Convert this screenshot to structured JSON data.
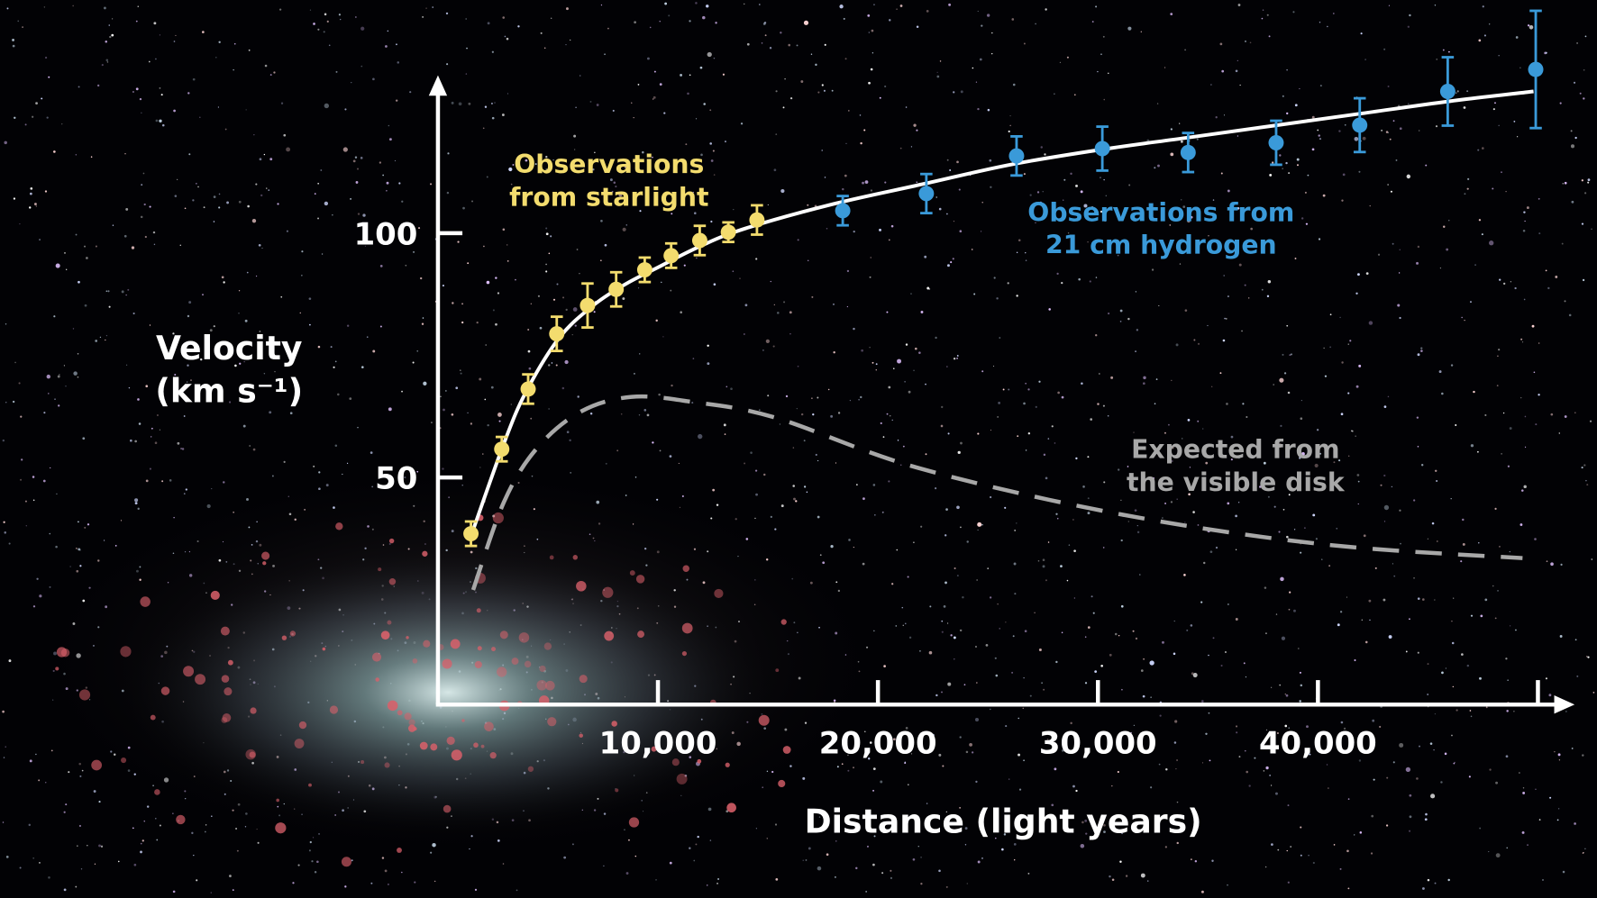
{
  "chart_data": {
    "type": "scatter",
    "title": "",
    "xlabel": "Distance (light years)",
    "ylabel_line1": "Velocity",
    "ylabel_line2": "(km s⁻¹)",
    "xlim": [
      0,
      50000
    ],
    "ylim": [
      3.5,
      145
    ],
    "x_ticks": [
      10000,
      20000,
      30000,
      40000,
      50000
    ],
    "x_tick_labels": [
      "10,000",
      "20,000",
      "30,000",
      "40,000",
      ""
    ],
    "y_ticks": [
      50,
      100
    ],
    "y_tick_labels": [
      "50",
      "100"
    ],
    "grid": false,
    "background": "starfield with spiral galaxy",
    "series": [
      {
        "name": "Observations from starlight",
        "label_line1": "Observations",
        "label_line2": "from starlight",
        "color": "#f3dc6e",
        "points": [
          {
            "x": 1500,
            "y": 38.5,
            "err": 2.5
          },
          {
            "x": 2900,
            "y": 55.8,
            "err": 2.5
          },
          {
            "x": 4100,
            "y": 68.1,
            "err": 3
          },
          {
            "x": 5400,
            "y": 79.4,
            "err": 3.5
          },
          {
            "x": 6800,
            "y": 85.2,
            "err": 4.5
          },
          {
            "x": 8100,
            "y": 88.5,
            "err": 3.5
          },
          {
            "x": 9400,
            "y": 92.5,
            "err": 2.5
          },
          {
            "x": 10600,
            "y": 95.4,
            "err": 2.5
          },
          {
            "x": 11900,
            "y": 98.5,
            "err": 3
          },
          {
            "x": 13200,
            "y": 100.2,
            "err": 2
          },
          {
            "x": 14500,
            "y": 102.7,
            "err": 3
          }
        ]
      },
      {
        "name": "Observations from 21 cm hydrogen",
        "label_line1": "Observations from",
        "label_line2": "21 cm hydrogen",
        "color": "#3a9ad9",
        "points": [
          {
            "x": 18400,
            "y": 104.6,
            "err": 3
          },
          {
            "x": 22200,
            "y": 108.1,
            "err": 4
          },
          {
            "x": 26300,
            "y": 115.8,
            "err": 4
          },
          {
            "x": 30200,
            "y": 117.3,
            "err": 4.5
          },
          {
            "x": 34100,
            "y": 116.5,
            "err": 4
          },
          {
            "x": 38100,
            "y": 118.5,
            "err": 4.5
          },
          {
            "x": 41900,
            "y": 122.1,
            "err": 5.5
          },
          {
            "x": 45900,
            "y": 129,
            "err": 7
          },
          {
            "x": 49900,
            "y": 133.5,
            "err": 12
          }
        ]
      }
    ],
    "fit_curve": {
      "color": "#ffffff",
      "style": "solid",
      "points": [
        [
          1500,
          38
        ],
        [
          3000,
          57
        ],
        [
          4000,
          67.5
        ],
        [
          5500,
          78.5
        ],
        [
          7000,
          85
        ],
        [
          8500,
          89.5
        ],
        [
          10000,
          93
        ],
        [
          12000,
          97.5
        ],
        [
          14000,
          101
        ],
        [
          18000,
          106
        ],
        [
          22000,
          110
        ],
        [
          26000,
          114
        ],
        [
          30000,
          117
        ],
        [
          34000,
          119.5
        ],
        [
          38000,
          122
        ],
        [
          42000,
          124.5
        ],
        [
          46000,
          127
        ],
        [
          49800,
          129
        ]
      ]
    },
    "expected_curve": {
      "label_line1": "Expected from",
      "label_line2": "the visible disk",
      "color": "#a8a8a8",
      "style": "dashed",
      "points": [
        [
          1600,
          27
        ],
        [
          3000,
          45
        ],
        [
          4500,
          56
        ],
        [
          6500,
          63.5
        ],
        [
          8800,
          66.5
        ],
        [
          11500,
          65.5
        ],
        [
          15300,
          62.3
        ],
        [
          21800,
          52
        ],
        [
          31000,
          42.5
        ],
        [
          40300,
          36.3
        ],
        [
          49300,
          33.5
        ]
      ]
    }
  }
}
